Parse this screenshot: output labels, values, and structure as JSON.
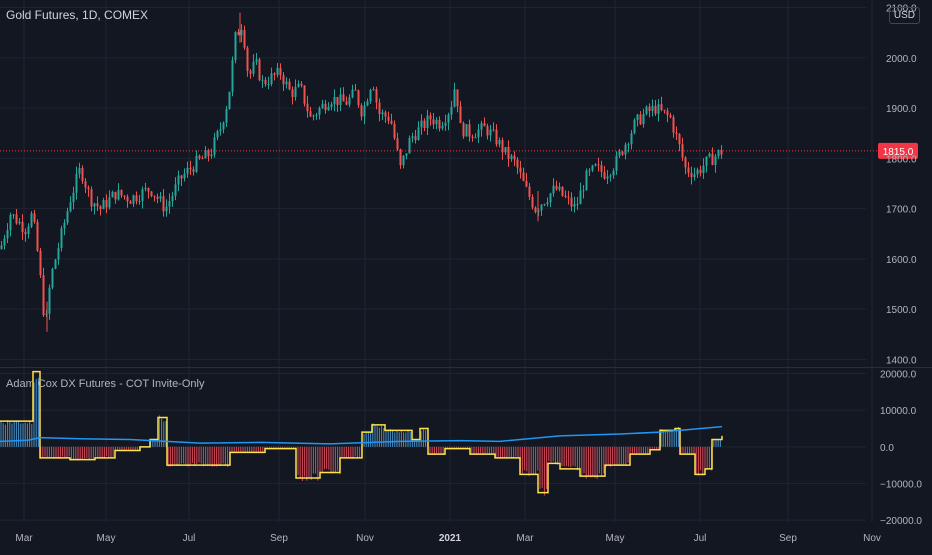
{
  "header": {
    "symbol_title": "Gold Futures, 1D, COMEX",
    "currency": "USD"
  },
  "indicator": {
    "title": "Adam Cox DX Futures - COT Invite-Only"
  },
  "colors": {
    "background": "#131722",
    "grid": "#1f2433",
    "text": "#b2b5be",
    "up": "#26a69a",
    "down": "#ef5350",
    "price_line": "#f23645",
    "cot_yellow": "#ffe14d",
    "cot_blue": "#2196f3",
    "cot_red": "#f7525f",
    "cot_bar_blue": "#4fa3e0"
  },
  "chart_data": [
    {
      "type": "candlestick",
      "title": "Gold Futures, 1D, COMEX",
      "x_axis": {
        "ticks": [
          "Mar",
          "May",
          "Jul",
          "Sep",
          "Nov",
          "2021",
          "Mar",
          "May",
          "Jul",
          "Sep",
          "Nov"
        ]
      },
      "y_axis": {
        "ticks": [
          "1400.0",
          "1500.0",
          "1600.0",
          "1700.0",
          "1800.0",
          "1900.0",
          "2000.0",
          "2100.0"
        ],
        "range": [
          1385,
          2115
        ]
      },
      "last_price": "1815.0",
      "price_path": [
        [
          0,
          1620
        ],
        [
          10,
          1690
        ],
        [
          25,
          1660
        ],
        [
          32,
          1690
        ],
        [
          38,
          1600
        ],
        [
          45,
          1460
        ],
        [
          50,
          1560
        ],
        [
          60,
          1640
        ],
        [
          70,
          1720
        ],
        [
          80,
          1780
        ],
        [
          90,
          1720
        ],
        [
          100,
          1700
        ],
        [
          115,
          1730
        ],
        [
          130,
          1720
        ],
        [
          150,
          1740
        ],
        [
          165,
          1700
        ],
        [
          180,
          1760
        ],
        [
          195,
          1790
        ],
        [
          210,
          1810
        ],
        [
          220,
          1860
        ],
        [
          228,
          1920
        ],
        [
          235,
          2040
        ],
        [
          242,
          2070
        ],
        [
          248,
          1960
        ],
        [
          255,
          1990
        ],
        [
          262,
          1950
        ],
        [
          270,
          1960
        ],
        [
          280,
          1970
        ],
        [
          290,
          1930
        ],
        [
          300,
          1940
        ],
        [
          310,
          1880
        ],
        [
          320,
          1900
        ],
        [
          330,
          1920
        ],
        [
          345,
          1910
        ],
        [
          355,
          1930
        ],
        [
          362,
          1890
        ],
        [
          372,
          1960
        ],
        [
          378,
          1890
        ],
        [
          390,
          1880
        ],
        [
          400,
          1780
        ],
        [
          410,
          1840
        ],
        [
          420,
          1860
        ],
        [
          430,
          1880
        ],
        [
          440,
          1870
        ],
        [
          450,
          1900
        ],
        [
          455,
          1950
        ],
        [
          460,
          1860
        ],
        [
          470,
          1850
        ],
        [
          485,
          1860
        ],
        [
          495,
          1840
        ],
        [
          505,
          1810
        ],
        [
          515,
          1790
        ],
        [
          525,
          1740
        ],
        [
          535,
          1700
        ],
        [
          545,
          1720
        ],
        [
          555,
          1740
        ],
        [
          565,
          1720
        ],
        [
          575,
          1700
        ],
        [
          585,
          1760
        ],
        [
          595,
          1780
        ],
        [
          605,
          1770
        ],
        [
          615,
          1790
        ],
        [
          625,
          1830
        ],
        [
          635,
          1870
        ],
        [
          645,
          1890
        ],
        [
          655,
          1900
        ],
        [
          662,
          1890
        ],
        [
          670,
          1880
        ],
        [
          678,
          1830
        ],
        [
          685,
          1780
        ],
        [
          695,
          1770
        ],
        [
          705,
          1790
        ],
        [
          715,
          1805
        ],
        [
          722,
          1815
        ]
      ],
      "high_points": [
        [
          240,
          2090
        ],
        [
          47,
          1455
        ],
        [
          538,
          1675
        ]
      ]
    },
    {
      "type": "bar",
      "title": "Adam Cox DX Futures - COT Invite-Only",
      "y_axis": {
        "ticks": [
          "20000.0",
          "10000.0",
          "0.0",
          "−10000.0",
          "−20000.0"
        ],
        "range": [
          -20500,
          21500
        ]
      },
      "series": [
        {
          "kind": "step-line",
          "color": "yellow",
          "points": [
            [
              0,
              7000
            ],
            [
              28,
              7000
            ],
            [
              33,
              20500
            ],
            [
              40,
              20500
            ],
            [
              40,
              -3000
            ],
            [
              60,
              -3000
            ],
            [
              70,
              -3500
            ],
            [
              95,
              -3000
            ],
            [
              115,
              -1000
            ],
            [
              140,
              0
            ],
            [
              150,
              2000
            ],
            [
              158,
              2000
            ],
            [
              158,
              8000
            ],
            [
              167,
              8000
            ],
            [
              167,
              -5000
            ],
            [
              195,
              -5000
            ],
            [
              230,
              -1500
            ],
            [
              265,
              -500
            ],
            [
              296,
              -500
            ],
            [
              296,
              -8500
            ],
            [
              320,
              -7000
            ],
            [
              340,
              -3000
            ],
            [
              362,
              4000
            ],
            [
              372,
              6000
            ],
            [
              385,
              4500
            ],
            [
              405,
              4500
            ],
            [
              412,
              2000
            ],
            [
              420,
              5000
            ],
            [
              428,
              -2000
            ],
            [
              445,
              -500
            ],
            [
              470,
              -2000
            ],
            [
              495,
              -3000
            ],
            [
              520,
              -7500
            ],
            [
              538,
              -12500
            ],
            [
              548,
              -4500
            ],
            [
              560,
              -6000
            ],
            [
              580,
              -8000
            ],
            [
              605,
              -5000
            ],
            [
              630,
              -2000
            ],
            [
              650,
              -800
            ],
            [
              660,
              4500
            ],
            [
              675,
              5000
            ],
            [
              680,
              -2000
            ],
            [
              695,
              -7500
            ],
            [
              705,
              -6000
            ],
            [
              712,
              2000
            ],
            [
              722,
              3000
            ]
          ]
        },
        {
          "kind": "line",
          "color": "blue",
          "points": [
            [
              0,
              1500
            ],
            [
              28,
              1800
            ],
            [
              40,
              2500
            ],
            [
              80,
              2200
            ],
            [
              130,
              2000
            ],
            [
              200,
              1000
            ],
            [
              260,
              1200
            ],
            [
              330,
              800
            ],
            [
              400,
              1500
            ],
            [
              460,
              1700
            ],
            [
              500,
              1500
            ],
            [
              560,
              3000
            ],
            [
              620,
              3500
            ],
            [
              660,
              4000
            ],
            [
              722,
              5500
            ]
          ]
        },
        {
          "kind": "bars",
          "values_follow": "yellow series",
          "zero_line": 0
        }
      ]
    }
  ]
}
